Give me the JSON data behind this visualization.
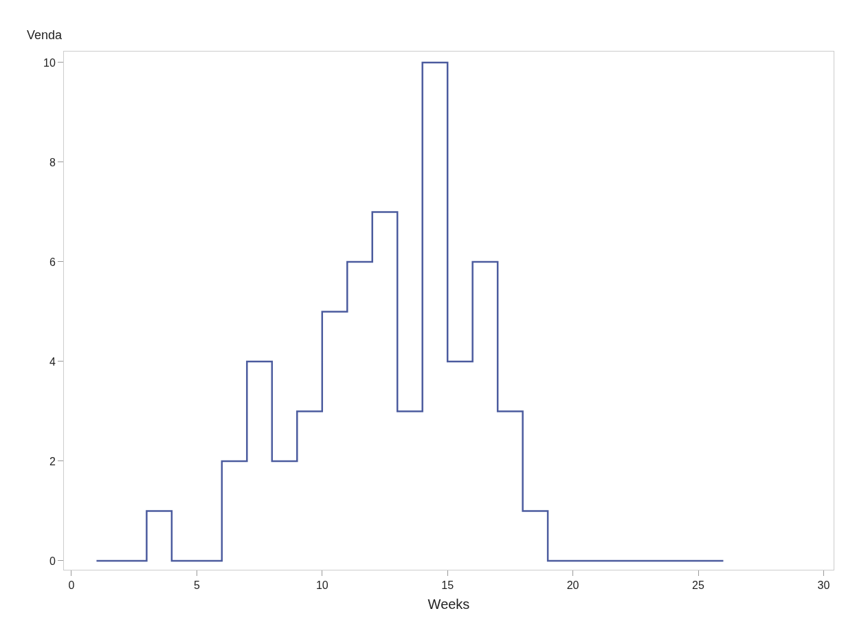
{
  "chart_data": {
    "type": "step",
    "xlabel": "Weeks",
    "ylabel": "Venda",
    "x": [
      1,
      2,
      3,
      4,
      5,
      6,
      7,
      8,
      9,
      10,
      11,
      12,
      13,
      14,
      15,
      16,
      17,
      18,
      19,
      20,
      21,
      22,
      23,
      24,
      25,
      26
    ],
    "series": [
      {
        "color": "#4b5b9e",
        "values": [
          0,
          0,
          1,
          0,
          0,
          2,
          4,
          2,
          3,
          5,
          6,
          7,
          3,
          10,
          4,
          6,
          3,
          1,
          0,
          0,
          0,
          0,
          0,
          0,
          0,
          0
        ]
      }
    ],
    "xlim": [
      -0.3,
      30.4
    ],
    "xticks": [
      0,
      5,
      10,
      15,
      20,
      25,
      30
    ],
    "ylim": [
      -0.18,
      10.22
    ],
    "yticks": [
      0,
      2,
      4,
      6,
      8,
      10
    ],
    "grid": false,
    "legend": false
  }
}
